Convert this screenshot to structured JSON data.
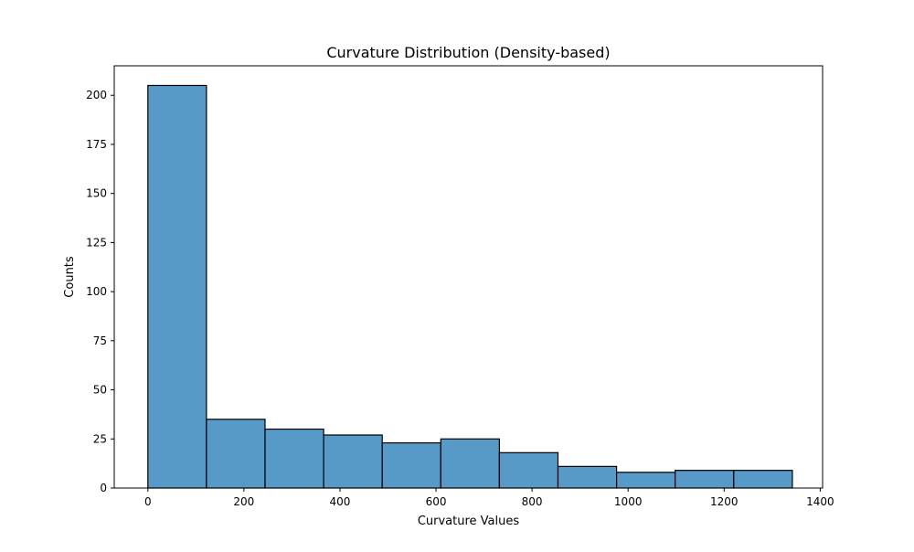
{
  "chart_data": {
    "type": "bar",
    "title": "Curvature Distribution (Density-based)",
    "xlabel": "Curvature Values",
    "ylabel": "Counts",
    "xlim": [
      -70,
      1405
    ],
    "ylim": [
      0,
      215
    ],
    "x_ticks": [
      0,
      200,
      400,
      600,
      800,
      1000,
      1200,
      1400
    ],
    "y_ticks": [
      0,
      25,
      50,
      75,
      100,
      125,
      150,
      175,
      200
    ],
    "bins": [
      {
        "start": 0,
        "end": 122,
        "count": 205
      },
      {
        "start": 122,
        "end": 244,
        "count": 35
      },
      {
        "start": 244,
        "end": 366,
        "count": 30
      },
      {
        "start": 366,
        "end": 488,
        "count": 27
      },
      {
        "start": 488,
        "end": 610,
        "count": 23
      },
      {
        "start": 610,
        "end": 732,
        "count": 25
      },
      {
        "start": 732,
        "end": 854,
        "count": 18
      },
      {
        "start": 854,
        "end": 976,
        "count": 11
      },
      {
        "start": 976,
        "end": 1098,
        "count": 8
      },
      {
        "start": 1098,
        "end": 1220,
        "count": 9
      },
      {
        "start": 1220,
        "end": 1342,
        "count": 9
      }
    ],
    "bar_color": "#5799c7",
    "edge_color": "#000000",
    "grid": false,
    "legend": "none"
  }
}
